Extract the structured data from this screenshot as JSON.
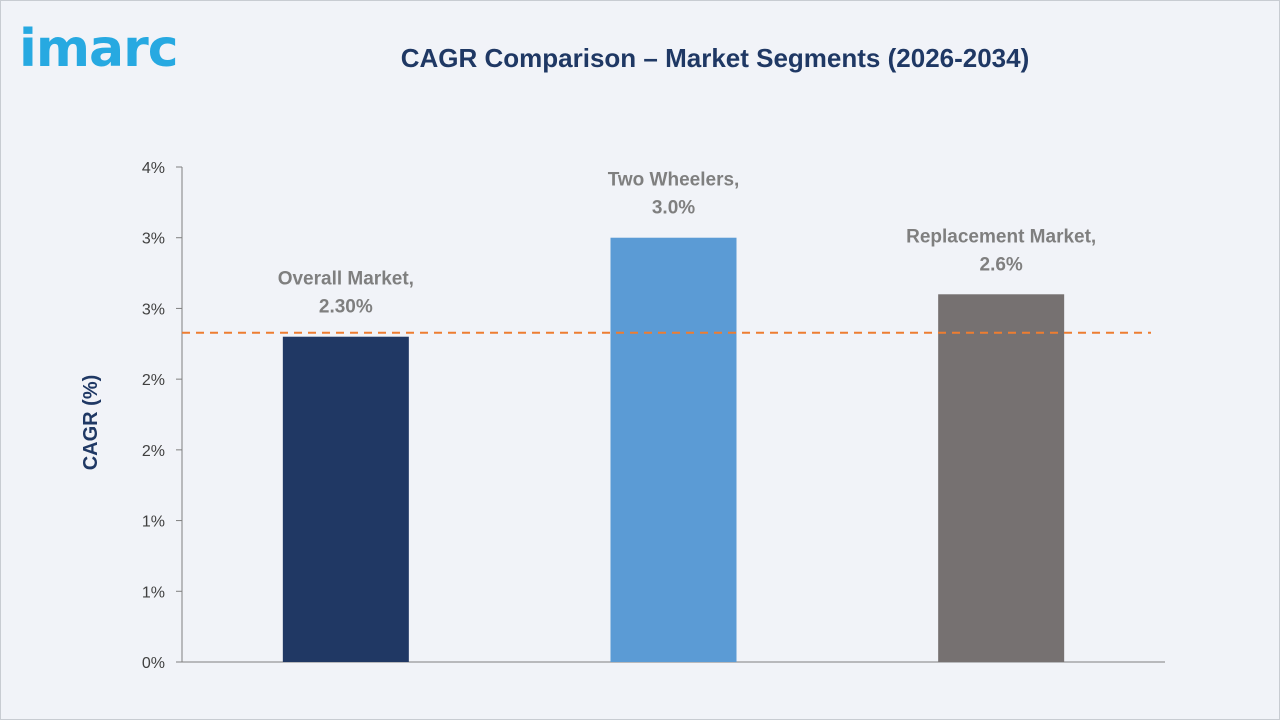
{
  "brand": {
    "logo_text": "imarc",
    "logo_color": "#27a9e1"
  },
  "chart_data": {
    "type": "bar",
    "title": "CAGR Comparison – Market Segments (2026-2034)",
    "xlabel": "",
    "ylabel": "CAGR (%)",
    "ylim": [
      0,
      3.5
    ],
    "ytick_values": [
      0,
      0.5,
      1.0,
      1.5,
      2.0,
      2.5,
      3.0,
      3.5
    ],
    "ytick_labels": [
      "0%",
      "1%",
      "1%",
      "2%",
      "2%",
      "3%",
      "3%",
      "4%"
    ],
    "categories": [
      "Overall Market",
      "Two Wheelers",
      "Replacement Market"
    ],
    "values": [
      2.3,
      3.0,
      2.6
    ],
    "data_labels": [
      [
        "Overall Market,",
        "2.30%"
      ],
      [
        "Two Wheelers,",
        "3.0%"
      ],
      [
        "Replacement Market,",
        "2.6%"
      ]
    ],
    "colors": [
      "#203864",
      "#5b9bd5",
      "#767171"
    ],
    "reference_line": {
      "value": 2.3,
      "style": "dashed",
      "color": "#ed7d31"
    },
    "grid": false,
    "legend": "none"
  }
}
